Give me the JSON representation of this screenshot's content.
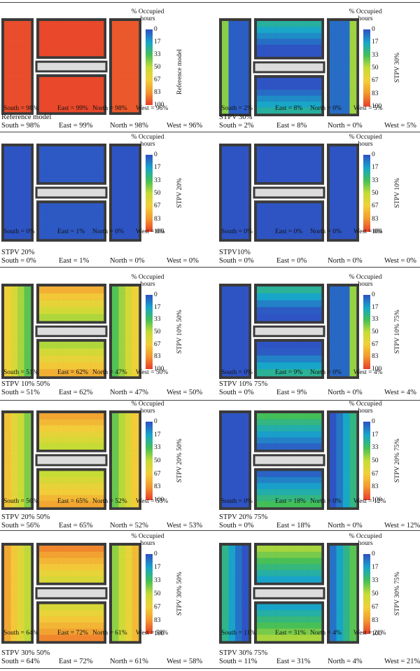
{
  "legend": {
    "title_line1": "% Occupied",
    "title_line2": "hours",
    "ticks": [
      "0",
      "17",
      "33",
      "50",
      "67",
      "83",
      "100"
    ]
  },
  "panels": [
    {
      "id": "ref",
      "label": "Reference model",
      "caption_title": "Reference model",
      "south": "South = 98%",
      "east": "East = 99%",
      "north": "North = 98%",
      "west": "West = 96%",
      "caption_south": "South = 98%",
      "caption_east": "East = 99%",
      "caption_north": "North = 98%",
      "caption_west": "West = 96%",
      "values": {
        "south": 98,
        "east": 99,
        "north": 98,
        "west": 96
      }
    },
    {
      "id": "stpv30",
      "label": "STPV 30%",
      "caption_title": "STPV  30%",
      "south": "South = 2%",
      "east": "East = 8%",
      "north": "North = 0%",
      "west": "West = 5%",
      "caption_south": "South = 2%",
      "caption_east": "East = 8%",
      "caption_north": "North = 0%",
      "caption_west": "West = 5%",
      "values": {
        "south": 2,
        "east": 8,
        "north": 0,
        "west": 5
      }
    },
    {
      "id": "stpv20",
      "label": "STPV 20%",
      "caption_title": "STPV  20%",
      "south": "South = 0%",
      "east": "East = 1%",
      "north": "North = 0%",
      "west": "West = 0%",
      "caption_south": "South = 0%",
      "caption_east": "East = 1%",
      "caption_north": "North = 0%",
      "caption_west": "West = 0%",
      "values": {
        "south": 0,
        "east": 1,
        "north": 0,
        "west": 0
      }
    },
    {
      "id": "stpv10",
      "label": "STPV 10%",
      "caption_title": "STPV10%",
      "south": "South = 0%",
      "east": "East = 0%",
      "north": "North = 0%",
      "west": "West = 0%",
      "caption_south": "South = 0%",
      "caption_east": "East = 0%",
      "caption_north": "North = 0%",
      "caption_west": "West = 0%",
      "values": {
        "south": 0,
        "east": 0,
        "north": 0,
        "west": 0
      }
    },
    {
      "id": "stpv10_50",
      "label": "STPV 10% 50%",
      "caption_title": "STPV  10%  50%",
      "south": "South = 51%",
      "east": "East = 62%",
      "north": "North = 47%",
      "west": "West = 50%",
      "caption_south": "South = 51%",
      "caption_east": "East = 62%",
      "caption_north": "North = 47%",
      "caption_west": "West = 50%",
      "values": {
        "south": 51,
        "east": 62,
        "north": 47,
        "west": 50
      }
    },
    {
      "id": "stpv10_75",
      "label": "STPV 10% 75%",
      "caption_title": "STPV  10%  75%",
      "south": "South = 0%",
      "east": "East = 9%",
      "north": "North = 0%",
      "west": "West = 4%",
      "caption_south": "South = 0%",
      "caption_east": "East = 9%",
      "caption_north": "North = 0%",
      "caption_west": "West = 4%",
      "values": {
        "south": 0,
        "east": 9,
        "north": 0,
        "west": 4
      }
    },
    {
      "id": "stpv20_50",
      "label": "STPV 20% 50%",
      "caption_title": "STPV  20%  50%",
      "south": "South = 56%",
      "east": "East = 65%",
      "north": "North = 52%",
      "west": "West = 53%",
      "caption_south": "South = 56%",
      "caption_east": "East = 65%",
      "caption_north": "North = 52%",
      "caption_west": "West = 53%",
      "values": {
        "south": 56,
        "east": 65,
        "north": 52,
        "west": 53
      }
    },
    {
      "id": "stpv20_75",
      "label": "STPV 20% 75%",
      "caption_title": "STPV  20%  75%",
      "south": "South = 0%",
      "east": "East = 18%",
      "north": "North = 0%",
      "west": "West = 12%",
      "caption_south": "South = 0%",
      "caption_east": "East = 18%",
      "caption_north": "North = 0%",
      "caption_west": "West = 12%",
      "values": {
        "south": 0,
        "east": 18,
        "north": 0,
        "west": 12
      }
    },
    {
      "id": "stpv30_50",
      "label": "STPV 30% 50%",
      "caption_title": "STPV  30%  50%",
      "south": "South = 64%",
      "east": "East = 72%",
      "north": "North = 61%",
      "west": "West = 58%",
      "caption_south": "South = 64%",
      "caption_east": "East = 72%",
      "caption_north": "North = 61%",
      "caption_west": "West = 58%",
      "values": {
        "south": 64,
        "east": 72,
        "north": 61,
        "west": 58
      }
    },
    {
      "id": "stpv30_75",
      "label": "STPV 30% 75%",
      "caption_title": "STPV  30%  75%",
      "south": "South = 11%",
      "east": "East = 31%",
      "north": "North = 4%",
      "west": "West = 21%",
      "caption_south": "South = 11%",
      "caption_east": "East = 31%",
      "caption_north": "North = 4%",
      "caption_west": "West = 21%",
      "values": {
        "south": 11,
        "east": 31,
        "north": 4,
        "west": 21
      }
    }
  ],
  "colors": {
    "scale": [
      "#2e54c4",
      "#17a7c9",
      "#44bf57",
      "#c6dc36",
      "#f2d03a",
      "#f29a2f",
      "#e8432a"
    ],
    "wall": "#3a3a3a",
    "corridor": "#dcdcdc"
  }
}
